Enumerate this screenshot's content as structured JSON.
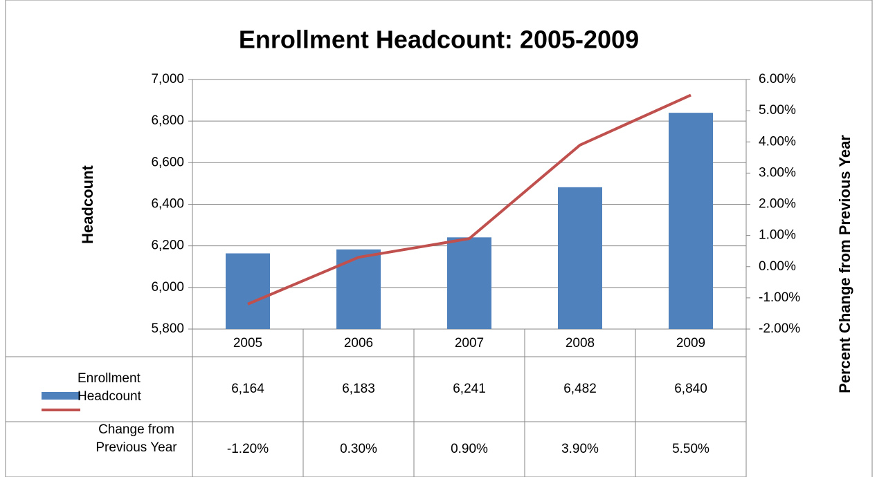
{
  "chart_data": {
    "type": "bar",
    "title": "Enrollment Headcount: 2005-2009",
    "y_label": "Headcount",
    "y2_label": "Percent Change from Previous Year",
    "categories": [
      "2005",
      "2006",
      "2007",
      "2008",
      "2009"
    ],
    "series": [
      {
        "name": "Enrollment Headcount",
        "type": "bar",
        "color": "#4f81bd",
        "values": [
          6164,
          6183,
          6241,
          6482,
          6840
        ],
        "value_labels": [
          "6,164",
          "6,183",
          "6,241",
          "6,482",
          "6,840"
        ]
      },
      {
        "name": "Change from Previous Year",
        "type": "line",
        "axis": "y2",
        "color": "#c0504d",
        "values": [
          -1.2,
          0.3,
          0.9,
          3.9,
          5.5
        ],
        "value_labels": [
          "-1.20%",
          "0.30%",
          "0.90%",
          "3.90%",
          "5.50%"
        ]
      }
    ],
    "ylim": [
      5800,
      7000
    ],
    "yticks": [
      {
        "value": 5800,
        "label": "5,800"
      },
      {
        "value": 6000,
        "label": "6,000"
      },
      {
        "value": 6200,
        "label": "6,200"
      },
      {
        "value": 6400,
        "label": "6,400"
      },
      {
        "value": 6600,
        "label": "6,600"
      },
      {
        "value": 6800,
        "label": "6,800"
      },
      {
        "value": 7000,
        "label": "7,000"
      }
    ],
    "y2lim": [
      -2,
      6
    ],
    "y2ticks": [
      {
        "value": -2,
        "label": "-2.00%"
      },
      {
        "value": -1,
        "label": "-1.00%"
      },
      {
        "value": 0,
        "label": "0.00%"
      },
      {
        "value": 1,
        "label": "1.00%"
      },
      {
        "value": 2,
        "label": "2.00%"
      },
      {
        "value": 3,
        "label": "3.00%"
      },
      {
        "value": 4,
        "label": "4.00%"
      },
      {
        "value": 5,
        "label": "5.00%"
      },
      {
        "value": 6,
        "label": "6.00%"
      }
    ],
    "grid": true
  }
}
